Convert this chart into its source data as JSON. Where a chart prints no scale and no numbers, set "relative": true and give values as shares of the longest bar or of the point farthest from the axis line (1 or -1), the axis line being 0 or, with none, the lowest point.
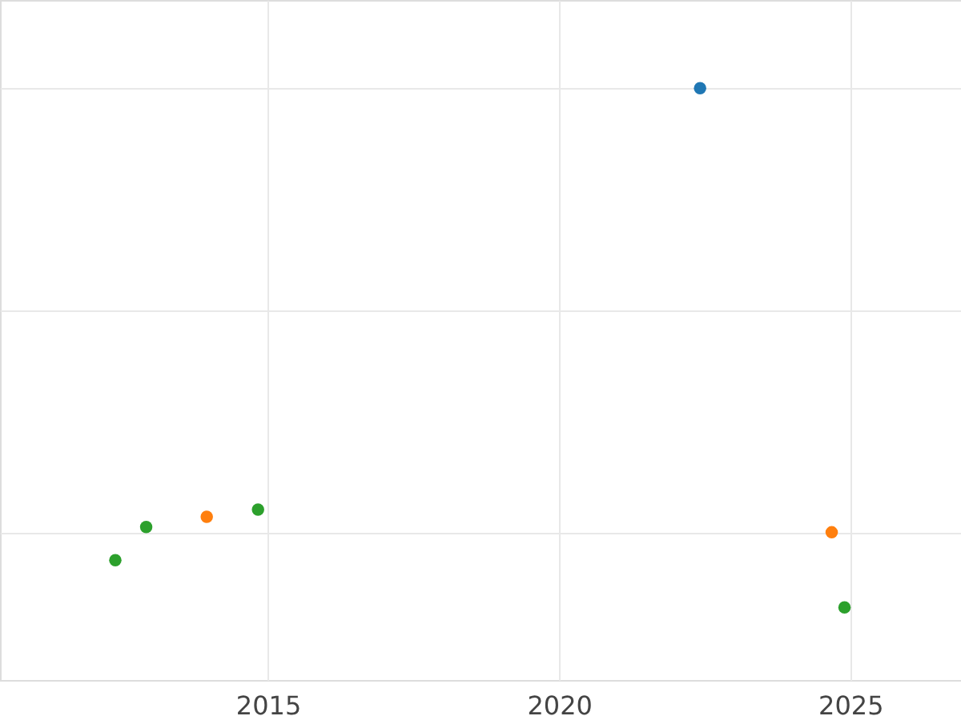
{
  "chart_data": {
    "type": "scatter",
    "relative": true,
    "xlim": [
      2010.4,
      2026.9
    ],
    "xticks": [
      2015,
      2020,
      2025
    ],
    "grid": true,
    "marker": "circle",
    "legend": false,
    "series": [
      {
        "color": "#1f77b4",
        "x": [
          2022.42
        ],
        "values": [
          1
        ]
      },
      {
        "color": "#ff7f0e",
        "x": [
          2013.95,
          2024.68
        ],
        "values": [
          0.035,
          0
        ]
      },
      {
        "color": "#2ca02c",
        "x": [
          2012.38,
          2012.91,
          2014.83,
          2024.9
        ],
        "values": [
          -0.063,
          0.012,
          0.051,
          -0.169
        ]
      }
    ]
  }
}
